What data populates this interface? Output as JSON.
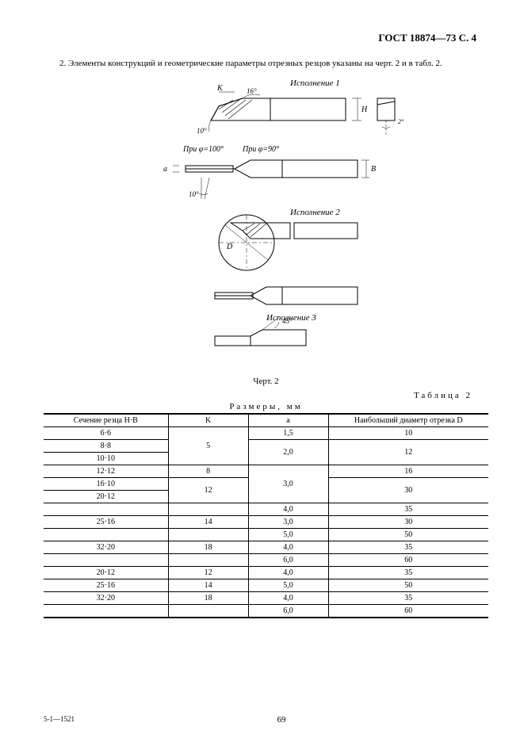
{
  "header": "ГОСТ 18874—73 С. 4",
  "intro": "2. Элементы конструкций и геометрические параметры отрезных резцов указаны на черт. 2  и  в табл. 2.",
  "figure": {
    "ispolnenie1": "Исполнение  1",
    "ispolnenie2": "Исполнение  2",
    "ispolnenie3": "Исполнение  3",
    "angle16": "16°",
    "angle10": "10°",
    "angle45": "45°",
    "angle2": "2°",
    "phi100": "При φ=100°",
    "phi90": "При φ=90°",
    "dimK": "K",
    "dimH": "H",
    "dimB": "B",
    "dimD": "D",
    "dimA": "a",
    "caption": "Черт. 2"
  },
  "table": {
    "label": "Таблица 2",
    "caption": "Размеры, мм",
    "columns": [
      "Сечение резца  H·B",
      "K",
      "a",
      "Наибольший диаметр отрезка D"
    ],
    "rows": [
      {
        "hb": "6·6",
        "k": "5",
        "k_span": 3,
        "a": "1,5",
        "a_span": 1,
        "d": "10",
        "d_span": 1
      },
      {
        "hb": "8·8",
        "a": "2,0",
        "a_span": 2,
        "d": "12",
        "d_span": 2
      },
      {
        "hb": "10·10"
      },
      {
        "hb": "12·12",
        "k": "8",
        "k_span": 1,
        "a": "3,0",
        "a_span": 3,
        "d": "16",
        "d_span": 1
      },
      {
        "hb": "16·10",
        "k": "12",
        "k_span": 2,
        "d": "30",
        "d_span": 2
      },
      {
        "hb": "20·12"
      },
      {
        "hb": "",
        "k": "",
        "k_span": 1,
        "a": "4,0",
        "a_span": 1,
        "d": "35",
        "d_span": 1
      },
      {
        "hb": "25·16",
        "k": "14",
        "k_span": 1,
        "a": "3,0",
        "a_span": 1,
        "d": "30",
        "d_span": 1
      },
      {
        "hb": "",
        "k": "",
        "k_span": 1,
        "a": "5,0",
        "a_span": 1,
        "d": "50",
        "d_span": 1
      },
      {
        "hb": "32·20",
        "k": "18",
        "k_span": 1,
        "a": "4,0",
        "a_span": 1,
        "d": "35",
        "d_span": 1
      },
      {
        "hb": "",
        "k": "",
        "k_span": 1,
        "a": "6,0",
        "a_span": 1,
        "d": "60",
        "d_span": 1
      },
      {
        "hb": "20·12",
        "k": "12",
        "k_span": 1,
        "a": "4,0",
        "a_span": 1,
        "d": "35",
        "d_span": 1
      },
      {
        "hb": "25·16",
        "k": "14",
        "k_span": 1,
        "a": "5,0",
        "a_span": 1,
        "d": "50",
        "d_span": 1
      },
      {
        "hb": "32·20",
        "k": "18",
        "k_span": 1,
        "a": "4,0",
        "a_span": 1,
        "d": "35",
        "d_span": 1
      },
      {
        "hb": "",
        "k": "",
        "k_span": 1,
        "a": "6,0",
        "a_span": 1,
        "d": "60",
        "d_span": 1
      }
    ]
  },
  "footer": {
    "left": "5-1—1521",
    "page": "69"
  },
  "style": {
    "stroke": "#000000",
    "hatch_spacing": 4
  }
}
